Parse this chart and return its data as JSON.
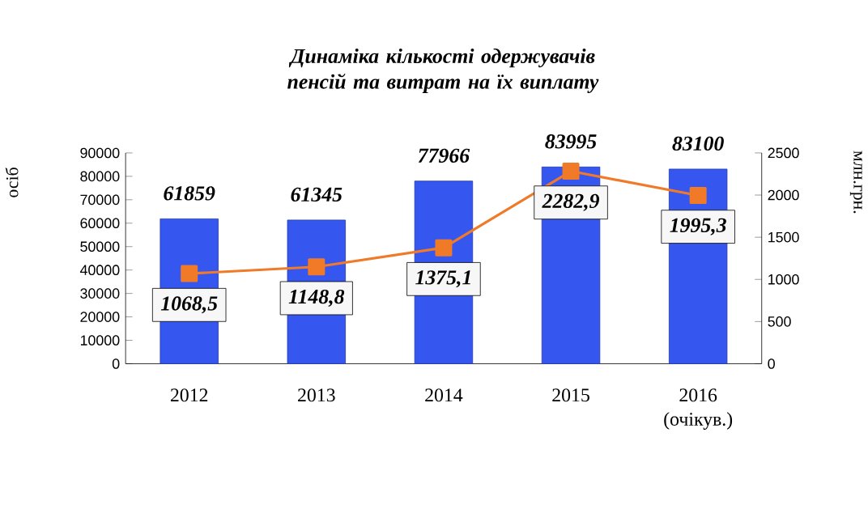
{
  "chart_data": {
    "type": "bar",
    "title": "Динаміка кількості одержувачів пенсій та витрат на їх виплату",
    "categories": [
      "2012",
      "2013",
      "2014",
      "2015",
      "2016 (очікув.)"
    ],
    "ylabel": "осіб",
    "y2label": "млн.грн.",
    "ylim": [
      0,
      90000
    ],
    "yticks": [
      0,
      10000,
      20000,
      30000,
      40000,
      50000,
      60000,
      70000,
      80000,
      90000
    ],
    "y2lim": [
      0,
      2500
    ],
    "y2ticks": [
      0,
      500,
      1000,
      1500,
      2000,
      2500
    ],
    "series": [
      {
        "color": "#3656f0",
        "values": [
          61859,
          61345,
          77966,
          83995,
          83100
        ],
        "value_labels": [
          "61859",
          "61345",
          "77966",
          "83995",
          "83100"
        ]
      },
      {
        "type": "line",
        "axis": "y2",
        "color": "#f07a28",
        "marker": "square",
        "values": [
          1068.5,
          1148.8,
          1375.1,
          2282.9,
          1995.3
        ],
        "value_labels": [
          "1068,5",
          "1148,8",
          "1375,1",
          "2282,9",
          "1995,3"
        ]
      }
    ]
  }
}
